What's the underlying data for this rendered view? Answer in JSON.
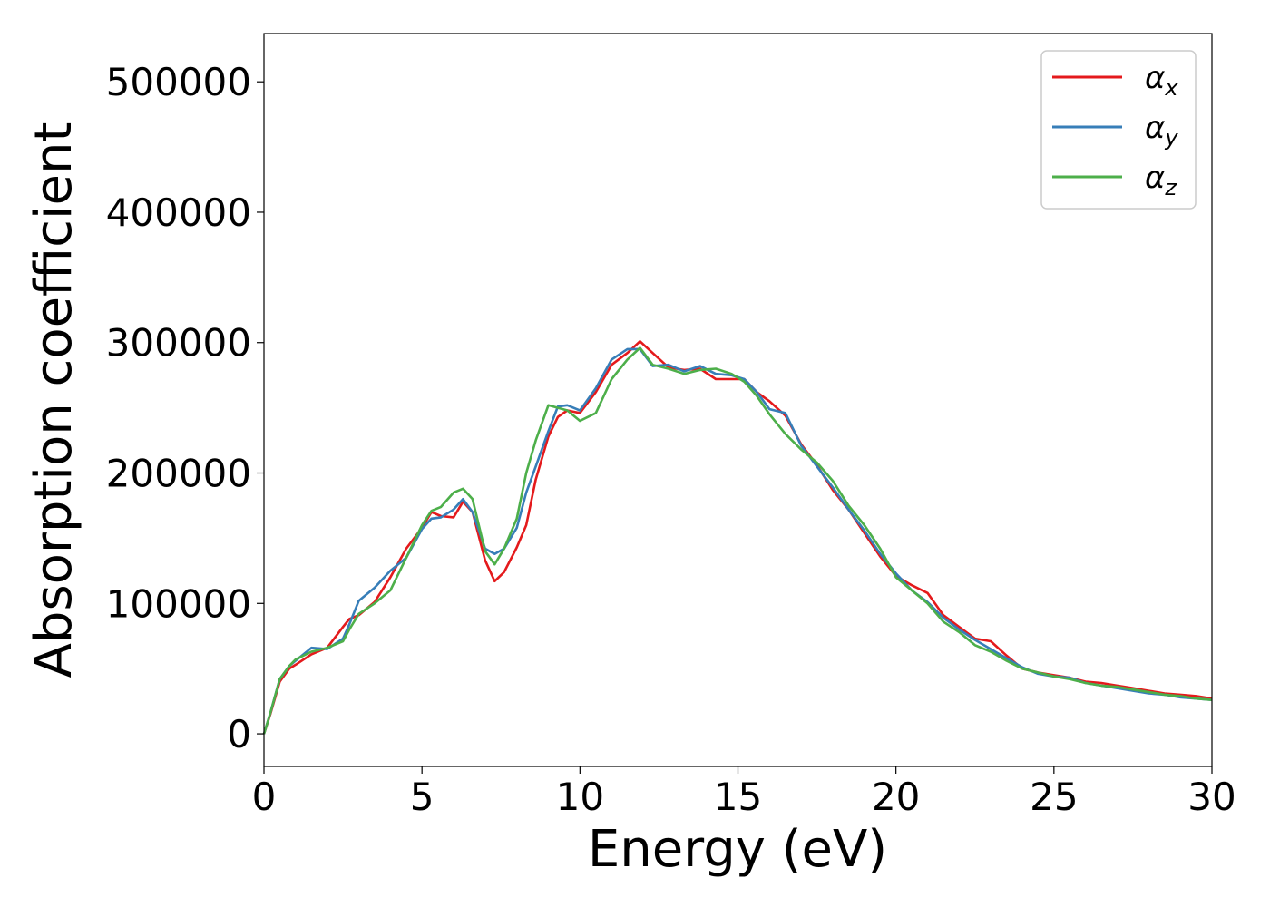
{
  "chart_data": {
    "type": "line",
    "title": "",
    "xlabel": "Energy (eV)",
    "ylabel": "Absorption coefficient",
    "xlim": [
      0,
      30
    ],
    "ylim": [
      -25000,
      537000
    ],
    "xticks": [
      0,
      5,
      10,
      15,
      20,
      25,
      30
    ],
    "yticks": [
      0,
      100000,
      200000,
      300000,
      400000,
      500000
    ],
    "grid": false,
    "legend_position": "top-right",
    "series": [
      {
        "name": "α",
        "subscript": "x",
        "color": "#e41a1c",
        "x": [
          0,
          0.2,
          0.5,
          0.8,
          1.0,
          1.5,
          2.0,
          2.5,
          2.7,
          3.0,
          3.5,
          4.0,
          4.5,
          5.0,
          5.3,
          5.6,
          6.0,
          6.3,
          6.6,
          7.0,
          7.3,
          7.6,
          8.0,
          8.3,
          8.6,
          9.0,
          9.3,
          9.6,
          10.0,
          10.5,
          11.0,
          11.5,
          11.9,
          12.3,
          12.8,
          13.3,
          13.8,
          14.3,
          14.8,
          15.2,
          15.6,
          16.0,
          16.5,
          17.0,
          17.5,
          18.0,
          18.5,
          19.0,
          19.5,
          20.0,
          20.5,
          21.0,
          21.5,
          22.0,
          22.5,
          23.0,
          23.5,
          24.0,
          24.5,
          25.0,
          25.5,
          26.0,
          26.5,
          27.0,
          27.5,
          28.0,
          28.5,
          29.0,
          29.5,
          30.0
        ],
        "y": [
          0,
          15000,
          40000,
          50000,
          53000,
          61000,
          66000,
          82000,
          88000,
          91000,
          101000,
          120000,
          142000,
          158000,
          170000,
          167000,
          166000,
          178000,
          170000,
          133000,
          117000,
          124000,
          143000,
          160000,
          195000,
          228000,
          243000,
          248000,
          246000,
          262000,
          283000,
          292000,
          301000,
          292000,
          281000,
          279000,
          280000,
          272000,
          272000,
          272000,
          262000,
          255000,
          244000,
          222000,
          206000,
          187000,
          172000,
          154000,
          136000,
          121000,
          114000,
          108000,
          91000,
          82000,
          73000,
          71000,
          60000,
          50000,
          47000,
          45000,
          43000,
          40000,
          39000,
          37000,
          35000,
          33000,
          31000,
          30000,
          29000,
          27000
        ]
      },
      {
        "name": "α",
        "subscript": "y",
        "color": "#377eb8",
        "x": [
          0,
          0.2,
          0.5,
          0.8,
          1.0,
          1.5,
          2.0,
          2.5,
          2.7,
          3.0,
          3.5,
          4.0,
          4.5,
          5.0,
          5.3,
          5.6,
          6.0,
          6.3,
          6.6,
          7.0,
          7.3,
          7.6,
          8.0,
          8.3,
          8.6,
          9.0,
          9.3,
          9.6,
          10.0,
          10.5,
          11.0,
          11.5,
          11.9,
          12.3,
          12.8,
          13.3,
          13.8,
          14.3,
          14.8,
          15.2,
          15.6,
          16.0,
          16.5,
          17.0,
          17.5,
          18.0,
          18.5,
          19.0,
          19.5,
          20.0,
          20.5,
          21.0,
          21.5,
          22.0,
          22.5,
          23.0,
          23.5,
          24.0,
          24.5,
          25.0,
          25.5,
          26.0,
          26.5,
          27.0,
          27.5,
          28.0,
          28.5,
          29.0,
          29.5,
          30.0
        ],
        "y": [
          0,
          16000,
          42000,
          52000,
          56000,
          66000,
          65000,
          73000,
          84000,
          102000,
          112000,
          125000,
          135000,
          157000,
          165000,
          166000,
          172000,
          180000,
          170000,
          142000,
          138000,
          142000,
          158000,
          185000,
          205000,
          232000,
          251000,
          252000,
          248000,
          265000,
          287000,
          295000,
          295000,
          282000,
          283000,
          278000,
          282000,
          276000,
          275000,
          272000,
          262000,
          249000,
          246000,
          221000,
          205000,
          189000,
          172000,
          156000,
          138000,
          123000,
          110000,
          101000,
          89000,
          80000,
          72000,
          65000,
          58000,
          51000,
          46000,
          44000,
          43000,
          39000,
          37000,
          35000,
          33000,
          31000,
          30000,
          28000,
          27000,
          26000
        ]
      },
      {
        "name": "α",
        "subscript": "z",
        "color": "#4daf4a",
        "x": [
          0,
          0.2,
          0.5,
          0.8,
          1.0,
          1.5,
          2.0,
          2.5,
          2.7,
          3.0,
          3.5,
          4.0,
          4.5,
          5.0,
          5.3,
          5.6,
          6.0,
          6.3,
          6.6,
          7.0,
          7.3,
          7.6,
          8.0,
          8.3,
          8.6,
          9.0,
          9.3,
          9.6,
          10.0,
          10.5,
          11.0,
          11.5,
          11.9,
          12.3,
          12.8,
          13.3,
          13.8,
          14.3,
          14.8,
          15.2,
          15.6,
          16.0,
          16.5,
          17.0,
          17.5,
          18.0,
          18.5,
          19.0,
          19.5,
          20.0,
          20.5,
          21.0,
          21.5,
          22.0,
          22.5,
          23.0,
          23.5,
          24.0,
          24.5,
          25.0,
          25.5,
          26.0,
          26.5,
          27.0,
          27.5,
          28.0,
          28.5,
          29.0,
          29.5,
          30.0
        ],
        "y": [
          0,
          16000,
          42000,
          52000,
          57000,
          63000,
          66000,
          71000,
          80000,
          92000,
          100000,
          110000,
          135000,
          160000,
          171000,
          174000,
          185000,
          188000,
          180000,
          140000,
          130000,
          142000,
          165000,
          200000,
          225000,
          252000,
          250000,
          248000,
          240000,
          246000,
          272000,
          287000,
          296000,
          283000,
          280000,
          276000,
          279000,
          280000,
          276000,
          270000,
          259000,
          245000,
          230000,
          218000,
          208000,
          194000,
          175000,
          160000,
          142000,
          120000,
          110000,
          100000,
          86000,
          78000,
          68000,
          63000,
          56000,
          50000,
          47000,
          44000,
          42000,
          39000,
          37000,
          36000,
          34000,
          32000,
          30000,
          29000,
          27000,
          26000
        ]
      }
    ]
  }
}
